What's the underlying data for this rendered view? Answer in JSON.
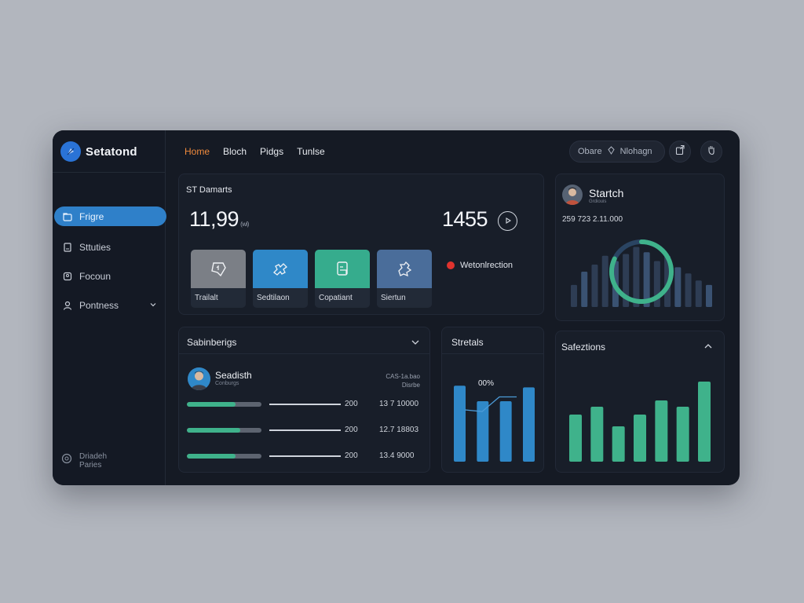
{
  "sidebar": {
    "brand": "Setatond",
    "items": [
      {
        "label": "Frigre",
        "icon": "folder-icon",
        "active": true
      },
      {
        "label": "Sttuties",
        "icon": "document-icon"
      },
      {
        "label": "Focoun",
        "icon": "clipboard-icon"
      },
      {
        "label": "Pontness",
        "icon": "user-icon",
        "chevron": true
      }
    ],
    "footer": {
      "line1": "Driadeh",
      "line2": "Paries"
    }
  },
  "topnav": {
    "items": [
      "Home",
      "Bloch",
      "Pidgs",
      "Tunlse"
    ],
    "active": "Home"
  },
  "search": {
    "label": "Obare",
    "value": "Nlohagn"
  },
  "metrics": {
    "title": "ST Damarts",
    "value_main": "11,99",
    "value_main_unit": "(wi)",
    "value_secondary": "1455",
    "tiles": [
      {
        "label": "Trailalt",
        "color": "#7b7f86",
        "icon": "chat-icon"
      },
      {
        "label": "Sedtilaon",
        "color": "#2f88c8",
        "icon": "puzzle-icon"
      },
      {
        "label": "Copatiant",
        "color": "#36ac8d",
        "icon": "document-icon"
      },
      {
        "label": "Siertun",
        "color": "#4a6d9a",
        "icon": "puzzle-icon"
      }
    ],
    "notification": "Wetonlrection"
  },
  "profile": {
    "name": "Startch",
    "subtitle": "Grdiouis",
    "numbers": "259 723 2.11.000"
  },
  "statistics": {
    "title": "Sabinberigs",
    "user_name": "Seadisth",
    "user_sub": "Conburgs",
    "meta_line1": "CAS-1a.bao",
    "meta_line2": "Disrbe",
    "rows": [
      {
        "fill": 0.65,
        "value": "200",
        "amount": "13 7 10000"
      },
      {
        "fill": 0.72,
        "value": "200",
        "amount": "12.7 18803"
      },
      {
        "fill": 0.65,
        "value": "200",
        "amount": "13.4 9000"
      }
    ]
  },
  "stretals": {
    "title": "Stretals",
    "percent": "00%"
  },
  "selections": {
    "title": "Safeztions"
  },
  "chart_data": [
    {
      "type": "bar",
      "title": "Stretals",
      "values": [
        88,
        70,
        70,
        86
      ],
      "ylim": [
        0,
        100
      ],
      "color": "#2f88c8",
      "line_overlay": [
        60,
        58,
        75,
        75
      ]
    },
    {
      "type": "bar",
      "title": "Safeztions",
      "values": [
        60,
        70,
        45,
        60,
        78,
        70,
        102
      ],
      "ylim": [
        0,
        110
      ],
      "color": "#3fb28b"
    },
    {
      "type": "bar",
      "title": "",
      "values": [
        25,
        40,
        48,
        58,
        52,
        60,
        68,
        62,
        52,
        58,
        45,
        38,
        30,
        25
      ],
      "ylim": [
        0,
        80
      ],
      "color": "#2e3d54",
      "ring_fraction": 0.82
    }
  ],
  "colors": {
    "accent": "#2f80c9",
    "active_nav": "#f08a3c",
    "green": "#3fb28b",
    "blue": "#2f88c8"
  }
}
